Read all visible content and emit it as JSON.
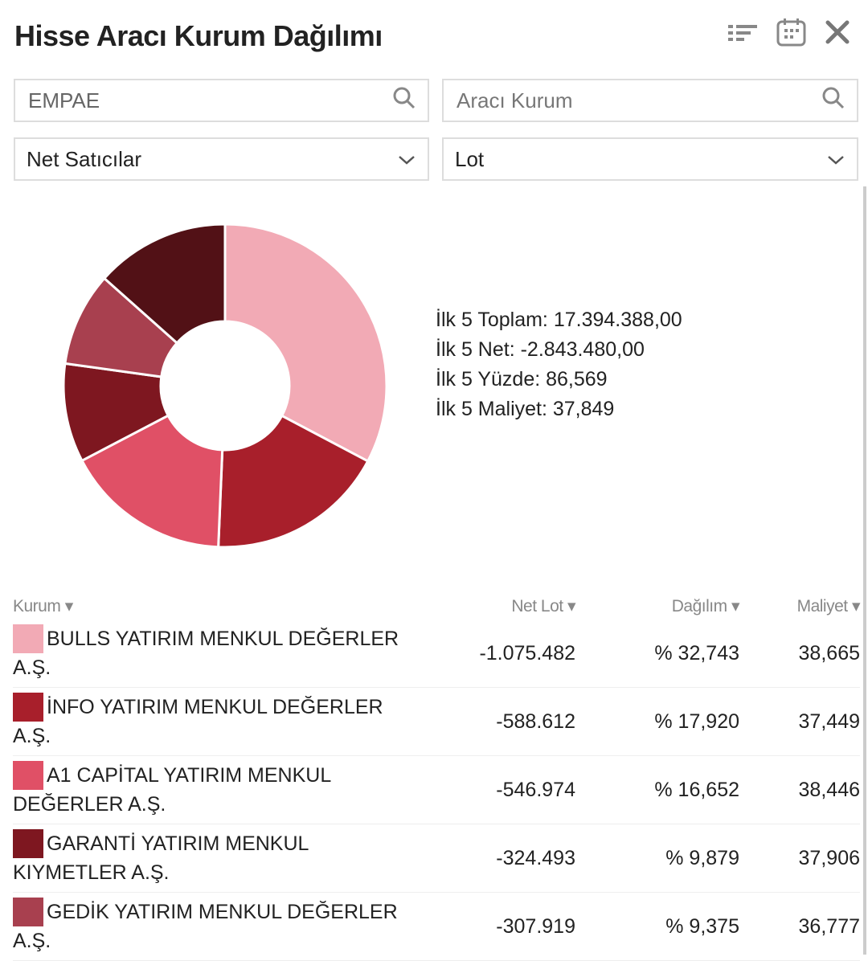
{
  "header": {
    "title": "Hisse Aracı Kurum Dağılımı",
    "icons": [
      "sort-list-icon",
      "calendar-icon",
      "close-icon"
    ]
  },
  "filters": {
    "symbol_value": "EMPAE",
    "broker_placeholder": "Aracı Kurum",
    "side_select": "Net Satıcılar",
    "unit_select": "Lot"
  },
  "summary": {
    "total": "İlk 5 Toplam: 17.394.388,00",
    "net": "İlk 5 Net: -2.843.480,00",
    "percent": "İlk 5 Yüzde: 86,569",
    "cost": "İlk 5 Maliyet: 37,849"
  },
  "chart_data": {
    "type": "pie",
    "donut": true,
    "categories": [
      "BULLS YATIRIM MENKUL DEĞERLER A.Ş.",
      "İNFO YATIRIM MENKUL DEĞERLER A.Ş.",
      "A1 CAPİTAL YATIRIM MENKUL DEĞERLER A.Ş.",
      "GARANTİ YATIRIM MENKUL KIYMETLER A.Ş.",
      "GEDİK YATIRIM MENKUL DEĞERLER A.Ş.",
      ""
    ],
    "values": [
      32.743,
      17.92,
      16.652,
      9.879,
      9.375,
      13.431
    ],
    "colors": [
      "#f2aab5",
      "#a81f2b",
      "#e05066",
      "#7e1720",
      "#a8404f",
      "#521116"
    ]
  },
  "table": {
    "headers": [
      "Kurum",
      "Net Lot",
      "Dağılım",
      "Maliyet"
    ],
    "rows": [
      {
        "name": "BULLS YATIRIM MENKUL DEĞERLER A.Ş.",
        "net": "-1.075.482",
        "pct": "% 32,743",
        "cost": "38,665"
      },
      {
        "name": "İNFO YATIRIM MENKUL DEĞERLER A.Ş.",
        "net": "-588.612",
        "pct": "% 17,920",
        "cost": "37,449"
      },
      {
        "name": "A1 CAPİTAL YATIRIM MENKUL DEĞERLER A.Ş.",
        "net": "-546.974",
        "pct": "% 16,652",
        "cost": "38,446"
      },
      {
        "name": "GARANTİ YATIRIM MENKUL KIYMETLER A.Ş.",
        "net": "-324.493",
        "pct": "% 9,879",
        "cost": "37,906"
      },
      {
        "name": "GEDİK YATIRIM MENKUL DEĞERLER A.Ş.",
        "net": "-307.919",
        "pct": "% 9,375",
        "cost": "36,777"
      }
    ]
  }
}
